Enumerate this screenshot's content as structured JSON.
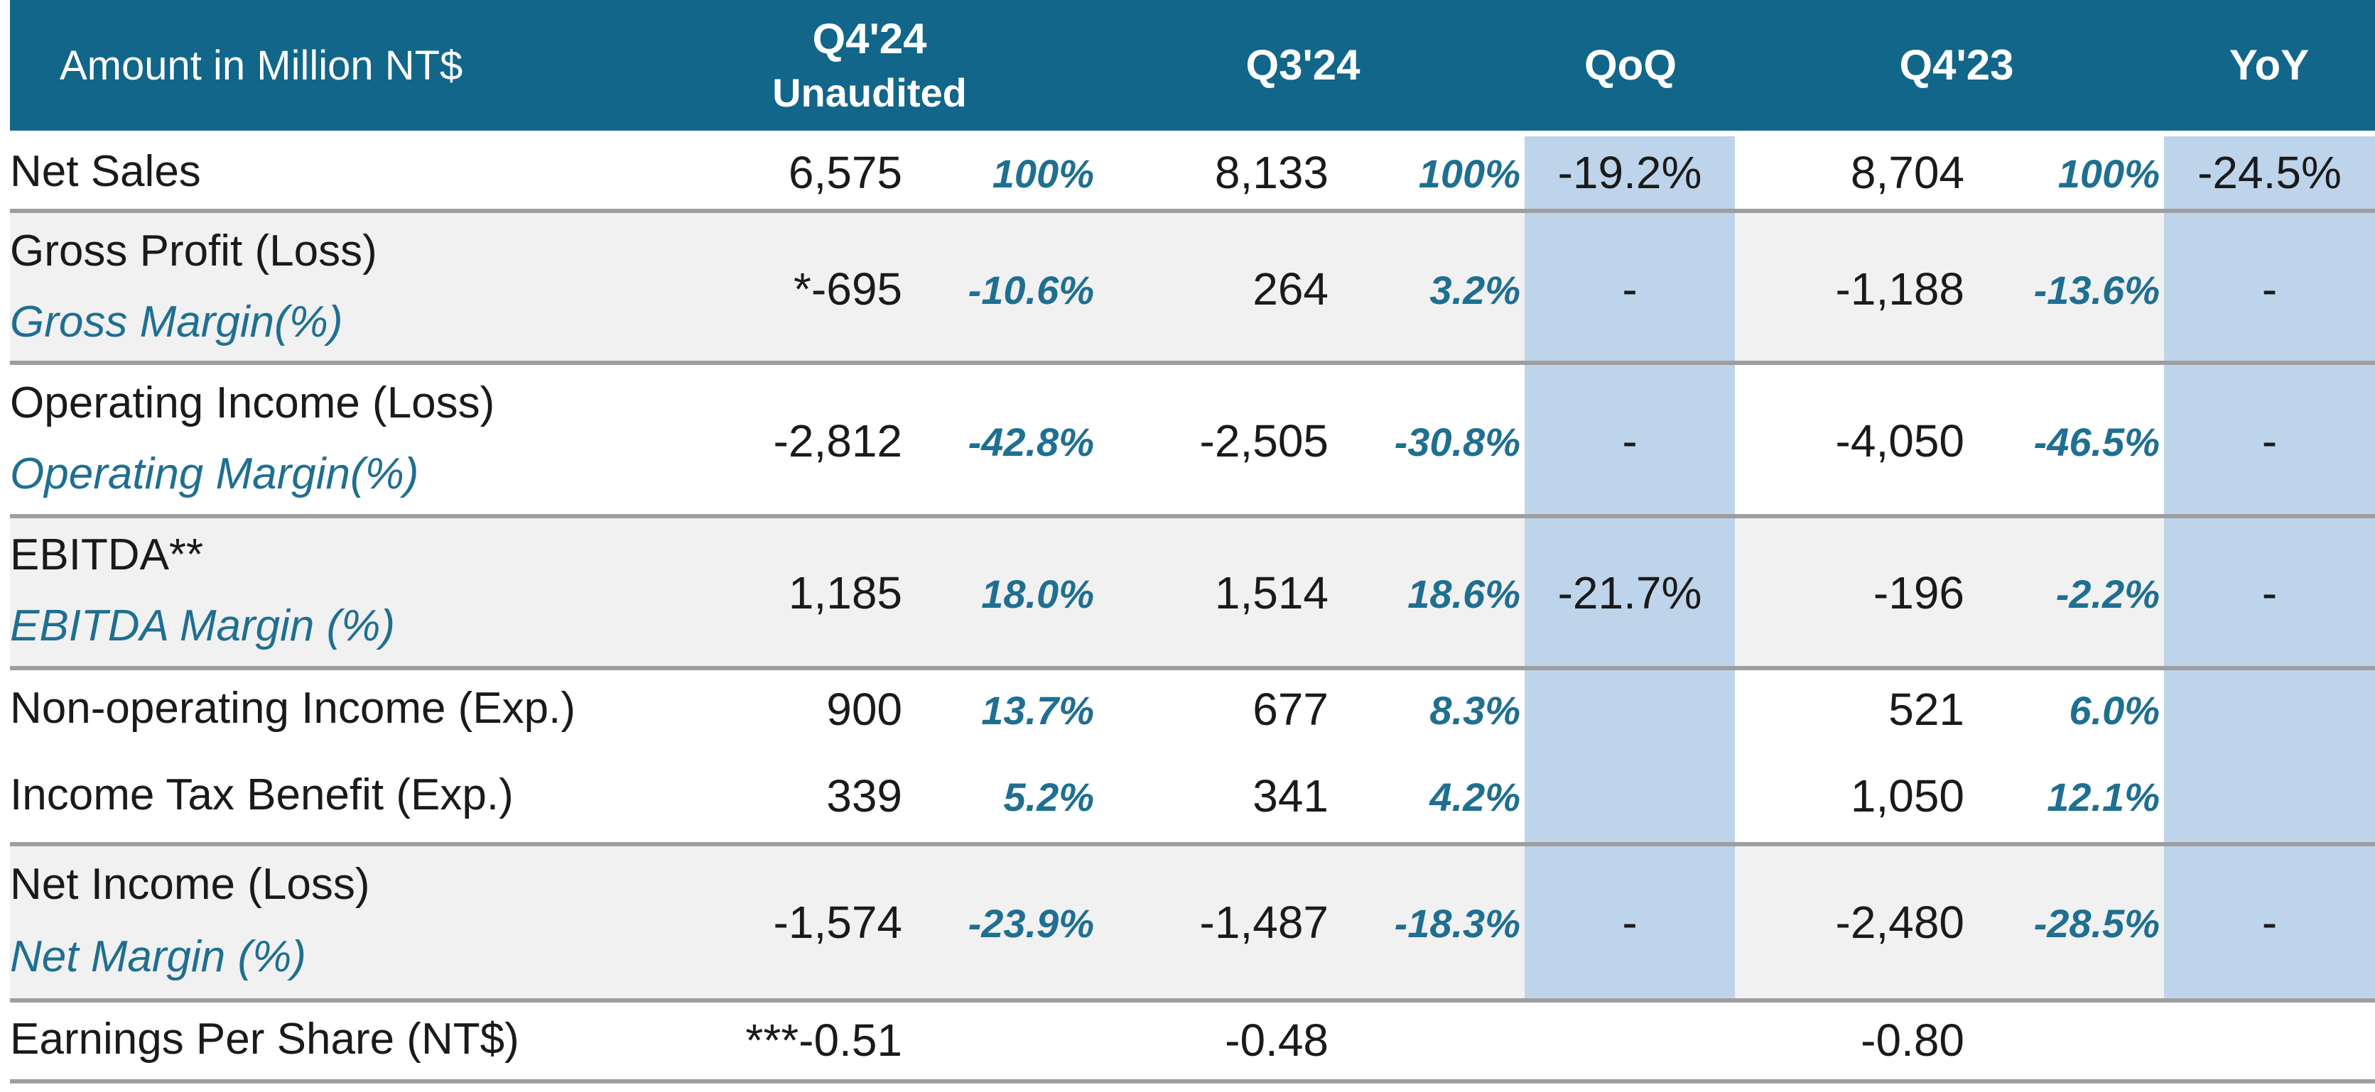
{
  "header": {
    "label": "Amount in Million NT$",
    "q4_24": "Q4'24",
    "q4_24_sub": "Unaudited",
    "q3_24": "Q3'24",
    "qoq": "QoQ",
    "q4_23": "Q4'23",
    "yoy": "YoY"
  },
  "rows": {
    "net_sales": {
      "label": "Net Sales",
      "q4_24": "6,575",
      "q4_24_pct": "100%",
      "q3_24": "8,133",
      "q3_24_pct": "100%",
      "qoq": "-19.2%",
      "q4_23": "8,704",
      "q4_23_pct": "100%",
      "yoy": "-24.5%"
    },
    "gross_profit": {
      "label": "Gross Profit (Loss)",
      "sub_label": "Gross Margin(%)",
      "q4_24": "*-695",
      "q4_24_pct": "-10.6%",
      "q3_24": "264",
      "q3_24_pct": "3.2%",
      "qoq": "-",
      "q4_23": "-1,188",
      "q4_23_pct": "-13.6%",
      "yoy": "-"
    },
    "operating_income": {
      "label": "Operating Income (Loss)",
      "sub_label": "Operating Margin(%)",
      "q4_24": "-2,812",
      "q4_24_pct": "-42.8%",
      "q3_24": "-2,505",
      "q3_24_pct": "-30.8%",
      "qoq": "-",
      "q4_23": "-4,050",
      "q4_23_pct": "-46.5%",
      "yoy": "-"
    },
    "ebitda": {
      "label": "EBITDA**",
      "sub_label": "EBITDA Margin (%)",
      "q4_24": "1,185",
      "q4_24_pct": "18.0%",
      "q3_24": "1,514",
      "q3_24_pct": "18.6%",
      "qoq": "-21.7%",
      "q4_23": "-196",
      "q4_23_pct": "-2.2%",
      "yoy": "-"
    },
    "non_operating": {
      "label": "Non-operating Income (Exp.)",
      "q4_24": "900",
      "q4_24_pct": "13.7%",
      "q3_24": "677",
      "q3_24_pct": "8.3%",
      "q4_23": "521",
      "q4_23_pct": "6.0%"
    },
    "income_tax": {
      "label": "Income Tax Benefit (Exp.)",
      "q4_24": "339",
      "q4_24_pct": "5.2%",
      "q3_24": "341",
      "q3_24_pct": "4.2%",
      "q4_23": "1,050",
      "q4_23_pct": "12.1%"
    },
    "net_income": {
      "label": "Net Income (Loss)",
      "sub_label": "Net Margin (%)",
      "q4_24": "-1,574",
      "q4_24_pct": "-23.9%",
      "q3_24": "-1,487",
      "q3_24_pct": "-18.3%",
      "qoq": "-",
      "q4_23": "-2,480",
      "q4_23_pct": "-28.5%",
      "yoy": "-"
    },
    "eps": {
      "label": "Earnings Per Share (NT$)",
      "q4_24": "***-0.51",
      "q3_24": "-0.48",
      "q4_23": "-0.80"
    }
  },
  "colors": {
    "header_bg": "#116689",
    "highlight_col": "#bed4ea",
    "row_shade": "#f1f1f1",
    "pct_text": "#1f6f91",
    "rule": "#9e9e9e"
  }
}
